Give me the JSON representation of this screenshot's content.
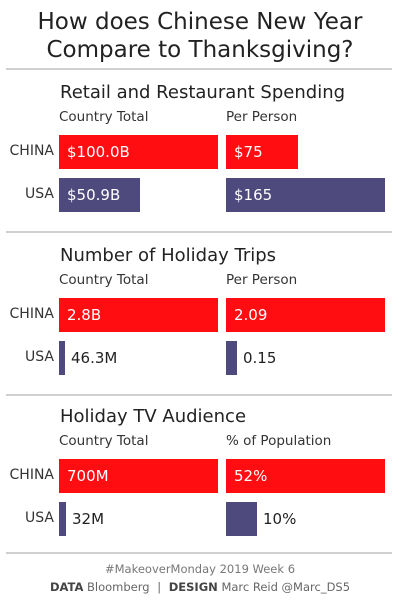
{
  "title_line1": "How does Chinese New Year",
  "title_line2": "Compare to Thanksgiving?",
  "colors": {
    "china": "#ff0d10",
    "usa": "#4f4a7d"
  },
  "chart_data": [
    {
      "type": "bar",
      "title": "Retail and Restaurant Spending",
      "col1_header": "Country Total",
      "col2_header": "Per Person",
      "categories": [
        "CHINA",
        "USA"
      ],
      "series": [
        {
          "name": "Country Total",
          "values": [
            100.0,
            50.9
          ],
          "labels": [
            "$100.0B",
            "$50.9B"
          ],
          "unit": "B USD"
        },
        {
          "name": "Per Person",
          "values": [
            75,
            165
          ],
          "labels": [
            "$75",
            "$165"
          ],
          "unit": "USD"
        }
      ]
    },
    {
      "type": "bar",
      "title": "Number of Holiday Trips",
      "col1_header": "Country Total",
      "col2_header": "Per Person",
      "categories": [
        "CHINA",
        "USA"
      ],
      "series": [
        {
          "name": "Country Total",
          "values": [
            2800,
            46.3
          ],
          "labels": [
            "2.8B",
            "46.3M"
          ],
          "unit": "M"
        },
        {
          "name": "Per Person",
          "values": [
            2.09,
            0.15
          ],
          "labels": [
            "2.09",
            "0.15"
          ],
          "unit": ""
        }
      ]
    },
    {
      "type": "bar",
      "title": "Holiday TV Audience",
      "col1_header": "Country Total",
      "col2_header": "% of Population",
      "categories": [
        "CHINA",
        "USA"
      ],
      "series": [
        {
          "name": "Country Total",
          "values": [
            700,
            32
          ],
          "labels": [
            "700M",
            "32M"
          ],
          "unit": "M"
        },
        {
          "name": "% of Population",
          "values": [
            52,
            10
          ],
          "labels": [
            "52%",
            "10%"
          ],
          "unit": "%"
        }
      ]
    }
  ],
  "footer_line1": "#MakeoverMonday 2019 Week 6",
  "footer_data_label": "DATA",
  "footer_data_value": "Bloomberg",
  "footer_separator": "|",
  "footer_design_label": "DESIGN",
  "footer_design_value": "Marc Reid  @Marc_DS5"
}
